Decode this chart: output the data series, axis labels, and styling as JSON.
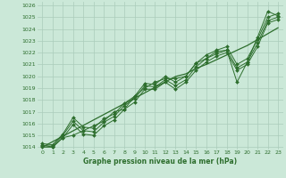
{
  "xlabel": "Graphe pression niveau de la mer (hPa)",
  "bg_color": "#cbe8d8",
  "grid_color": "#aaccbb",
  "line_color": "#2d6e2d",
  "xlim": [
    -0.5,
    23.5
  ],
  "ylim": [
    1013.8,
    1026.3
  ],
  "yticks": [
    1014,
    1015,
    1016,
    1017,
    1018,
    1019,
    1020,
    1021,
    1022,
    1023,
    1024,
    1025,
    1026
  ],
  "xticks": [
    0,
    1,
    2,
    3,
    4,
    5,
    6,
    7,
    8,
    9,
    10,
    11,
    12,
    13,
    14,
    15,
    16,
    17,
    18,
    19,
    20,
    21,
    22,
    23
  ],
  "series1": [
    1014.2,
    1014.0,
    1014.8,
    1015.0,
    1015.4,
    1015.8,
    1016.2,
    1017.0,
    1017.2,
    1018.3,
    1019.0,
    1019.5,
    1019.8,
    1019.8,
    1020.0,
    1021.1,
    1021.5,
    1022.1,
    1022.2,
    1019.5,
    1021.2,
    1023.3,
    1025.5,
    1025.1
  ],
  "series2": [
    1014.3,
    1014.2,
    1015.1,
    1016.5,
    1015.7,
    1015.6,
    1016.4,
    1016.8,
    1017.7,
    1018.3,
    1019.4,
    1019.3,
    1020.0,
    1019.5,
    1020.0,
    1021.1,
    1021.8,
    1022.2,
    1022.5,
    1021.0,
    1021.5,
    1023.1,
    1025.0,
    1025.3
  ],
  "series3": [
    1014.1,
    1014.1,
    1015.0,
    1016.2,
    1015.4,
    1015.3,
    1016.1,
    1016.6,
    1017.5,
    1018.1,
    1019.2,
    1019.1,
    1019.7,
    1019.2,
    1019.7,
    1020.8,
    1021.5,
    1021.9,
    1022.2,
    1020.7,
    1021.2,
    1022.8,
    1024.7,
    1025.0
  ],
  "series4": [
    1014.0,
    1014.0,
    1014.8,
    1015.9,
    1015.1,
    1015.0,
    1015.8,
    1016.3,
    1017.2,
    1017.8,
    1018.9,
    1018.9,
    1019.5,
    1018.9,
    1019.5,
    1020.5,
    1021.2,
    1021.7,
    1022.0,
    1020.5,
    1021.0,
    1022.5,
    1024.5,
    1024.8
  ],
  "trend": [
    1014.0,
    1014.46,
    1014.92,
    1015.38,
    1015.84,
    1016.3,
    1016.76,
    1017.22,
    1017.68,
    1018.14,
    1018.6,
    1019.06,
    1019.52,
    1019.98,
    1020.2,
    1020.66,
    1021.0,
    1021.4,
    1021.8,
    1022.2,
    1022.6,
    1023.1,
    1023.6,
    1024.1
  ]
}
